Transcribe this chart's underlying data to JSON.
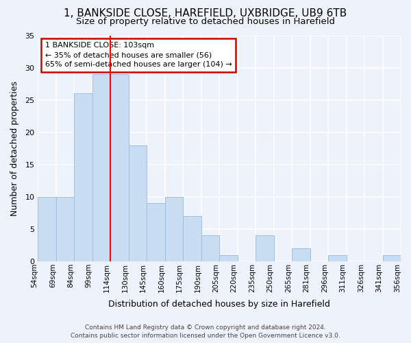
{
  "title": "1, BANKSIDE CLOSE, HAREFIELD, UXBRIDGE, UB9 6TB",
  "subtitle": "Size of property relative to detached houses in Harefield",
  "xlabel_bottom": "Distribution of detached houses by size in Harefield",
  "ylabel": "Number of detached properties",
  "footer_line1": "Contains HM Land Registry data © Crown copyright and database right 2024.",
  "footer_line2": "Contains public sector information licensed under the Open Government Licence v3.0.",
  "bin_labels": [
    "54sqm",
    "69sqm",
    "84sqm",
    "99sqm",
    "114sqm",
    "130sqm",
    "145sqm",
    "160sqm",
    "175sqm",
    "190sqm",
    "205sqm",
    "220sqm",
    "235sqm",
    "250sqm",
    "265sqm",
    "281sqm",
    "296sqm",
    "311sqm",
    "326sqm",
    "341sqm",
    "356sqm"
  ],
  "values": [
    10,
    10,
    26,
    29,
    29,
    18,
    9,
    10,
    7,
    4,
    1,
    0,
    4,
    0,
    2,
    0,
    1,
    0,
    0,
    1
  ],
  "bar_color": "#c9ddf2",
  "bar_edge_color": "#a0bedd",
  "red_line_bin_index": 3.5,
  "red_line_label": "1 BANKSIDE CLOSE: 103sqm",
  "annotation_line2": "← 35% of detached houses are smaller (56)",
  "annotation_line3": "65% of semi-detached houses are larger (104) →",
  "ylim": [
    0,
    35
  ],
  "yticks": [
    0,
    5,
    10,
    15,
    20,
    25,
    30,
    35
  ],
  "bg_color": "#eef2fa",
  "grid_color": "#ffffff",
  "annotation_box_color": "#ffffff",
  "annotation_box_edge": "#cc0000"
}
